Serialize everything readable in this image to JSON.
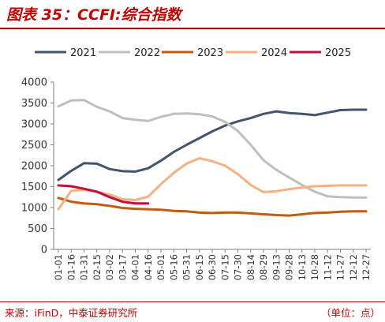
{
  "header": {
    "title": "图表 35：CCFI:综合指数"
  },
  "footer": {
    "source": "来源：iFinD，中泰证券研究所",
    "unit": "（单位：点）"
  },
  "chart_data": {
    "type": "line",
    "x": [
      "01-01",
      "01-16",
      "01-31",
      "02-15",
      "03-02",
      "03-17",
      "04-01",
      "04-16",
      "05-01",
      "05-16",
      "05-31",
      "06-15",
      "06-30",
      "07-15",
      "07-30",
      "08-14",
      "08-29",
      "09-13",
      "09-28",
      "10-13",
      "10-28",
      "11-12",
      "11-27",
      "12-12",
      "12-27"
    ],
    "ylim": [
      0,
      4000
    ],
    "yticks": [
      0,
      500,
      1000,
      1500,
      2000,
      2500,
      3000,
      3500,
      4000
    ],
    "legend_position": "top",
    "series": [
      {
        "name": "2021",
        "color": "#44546a",
        "values": [
          1660,
          1880,
          2060,
          2050,
          1920,
          1870,
          1860,
          1940,
          2120,
          2330,
          2500,
          2660,
          2820,
          2960,
          3060,
          3140,
          3240,
          3300,
          3260,
          3240,
          3210,
          3270,
          3330,
          3340,
          3340
        ]
      },
      {
        "name": "2022",
        "color": "#bfbfbf",
        "values": [
          3420,
          3560,
          3570,
          3410,
          3300,
          3140,
          3100,
          3070,
          3170,
          3240,
          3250,
          3230,
          3180,
          3050,
          2830,
          2500,
          2130,
          1900,
          1720,
          1540,
          1380,
          1270,
          1250,
          1240,
          1240
        ]
      },
      {
        "name": "2023",
        "color": "#c55a11",
        "values": [
          1230,
          1140,
          1100,
          1080,
          1040,
          990,
          970,
          960,
          950,
          920,
          910,
          880,
          870,
          880,
          880,
          860,
          840,
          820,
          810,
          840,
          870,
          880,
          900,
          910,
          910
        ]
      },
      {
        "name": "2024",
        "color": "#f4b183",
        "values": [
          960,
          1400,
          1420,
          1380,
          1310,
          1200,
          1180,
          1260,
          1560,
          1830,
          2050,
          2180,
          2110,
          2000,
          1800,
          1540,
          1370,
          1390,
          1440,
          1480,
          1510,
          1520,
          1530,
          1530,
          1530
        ]
      },
      {
        "name": "2025",
        "color": "#c0103f",
        "values": [
          1530,
          1510,
          1450,
          1380,
          1250,
          1140,
          1100,
          1100,
          null,
          null,
          null,
          null,
          null,
          null,
          null,
          null,
          null,
          null,
          null,
          null,
          null,
          null,
          null,
          null,
          null
        ]
      }
    ]
  }
}
